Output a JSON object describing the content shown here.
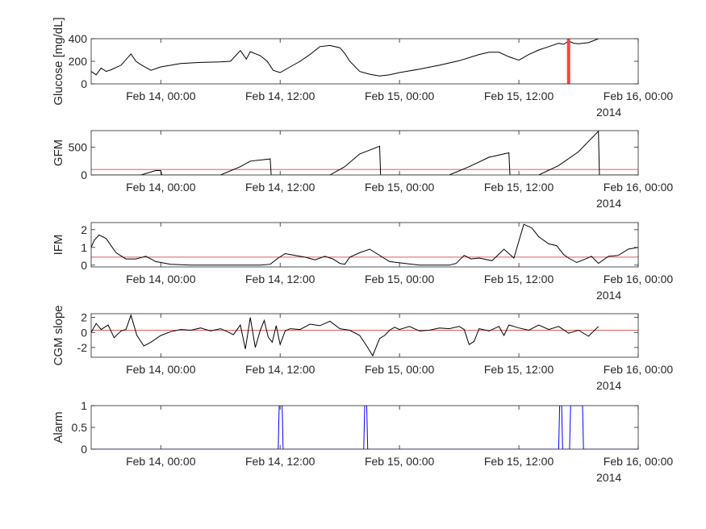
{
  "figure": {
    "background": "#ffffff"
  },
  "x_axis": {
    "ticks": [
      24,
      36,
      48,
      60,
      72
    ],
    "tick_labels": [
      "Feb 14, 00:00",
      "Feb 14, 12:00",
      "Feb 15, 00:00",
      "Feb 15, 12:00",
      "Feb 16, 00:00"
    ],
    "year_label": "2014",
    "xlim_hours_from_feb13_0000": [
      17,
      72
    ]
  },
  "chart_data": [
    {
      "type": "line",
      "ylabel": "Glucose [mg/dL]",
      "ylim": [
        0,
        400
      ],
      "yticks": [
        0,
        200,
        400
      ],
      "ytick_labels": [
        "0",
        "200",
        "400"
      ],
      "line_color": "#000000",
      "x_hours": [
        17,
        17.5,
        18,
        18.5,
        19,
        20,
        21,
        21.5,
        22,
        23,
        24,
        26,
        28,
        30,
        31,
        32,
        32.6,
        33,
        34,
        34.7,
        35.3,
        36,
        37,
        38,
        39,
        40,
        41,
        42,
        42.5,
        43,
        44,
        45,
        46,
        47,
        48,
        50,
        52,
        54,
        56,
        57,
        58,
        59,
        60,
        61,
        62,
        63,
        64,
        64.5,
        65,
        65.5,
        66,
        67,
        68
      ],
      "values": [
        110,
        80,
        140,
        110,
        125,
        165,
        265,
        200,
        170,
        120,
        150,
        180,
        190,
        195,
        200,
        295,
        220,
        285,
        250,
        200,
        120,
        100,
        150,
        200,
        260,
        330,
        340,
        320,
        270,
        200,
        110,
        85,
        70,
        80,
        100,
        130,
        165,
        205,
        260,
        280,
        280,
        240,
        210,
        260,
        300,
        330,
        360,
        350,
        380,
        360,
        355,
        365,
        400
      ],
      "markers": {
        "red_vertical_line_x": 65,
        "color": "#ff4040"
      }
    },
    {
      "type": "line",
      "ylabel": "GFM",
      "ylim": [
        0,
        800
      ],
      "yticks": [
        0,
        500
      ],
      "ytick_labels": [
        "0",
        "500"
      ],
      "line_color": "#000000",
      "threshold": {
        "value": 100,
        "color": "#d62728"
      },
      "x_hours": [
        17,
        22,
        23.5,
        24,
        24.1,
        30,
        32,
        33,
        35,
        35.1,
        41,
        42.5,
        44,
        46,
        46.1,
        53,
        55,
        57,
        59,
        59.1,
        62,
        64,
        66,
        68,
        68.1,
        72
      ],
      "values": [
        0,
        0,
        80,
        80,
        0,
        0,
        150,
        250,
        290,
        0,
        0,
        150,
        380,
        520,
        0,
        0,
        150,
        320,
        400,
        0,
        0,
        170,
        420,
        790,
        0,
        0
      ]
    },
    {
      "type": "line",
      "ylabel": "IFM",
      "ylim": [
        -0.1,
        2.4
      ],
      "yticks": [
        0,
        1,
        2
      ],
      "ytick_labels": [
        "0",
        "1",
        "2"
      ],
      "line_color": "#000000",
      "threshold": {
        "value": 0.45,
        "color": "#d62728"
      },
      "x_hours": [
        17,
        17.3,
        17.8,
        18.5,
        19.5,
        20.5,
        21.5,
        22.5,
        23.5,
        25,
        27,
        29,
        31,
        32,
        33,
        34,
        35,
        35.8,
        36.5,
        37.5,
        38.5,
        39.5,
        40.5,
        41.3,
        42,
        42.5,
        43,
        44,
        45,
        47,
        50,
        52,
        53,
        53.7,
        54.5,
        55.2,
        56,
        57.3,
        58.5,
        59.5,
        60.5,
        61.3,
        62,
        63,
        63.8,
        64.5,
        65,
        65.8,
        66.5,
        67.3,
        68,
        69,
        70,
        71,
        72
      ],
      "values": [
        1.0,
        1.4,
        1.7,
        1.5,
        0.7,
        0.35,
        0.35,
        0.5,
        0.2,
        0.05,
        0,
        0,
        0,
        0,
        0,
        0,
        0.05,
        0.4,
        0.65,
        0.55,
        0.45,
        0.3,
        0.5,
        0.35,
        0.1,
        0.05,
        0.45,
        0.7,
        0.9,
        0.2,
        0,
        0,
        0,
        0.1,
        0.55,
        0.35,
        0.4,
        0.25,
        0.9,
        0.4,
        2.3,
        2.1,
        1.6,
        1.2,
        1.1,
        0.6,
        0.4,
        0.15,
        0.3,
        0.5,
        0.1,
        0.5,
        0.55,
        0.9,
        1.0
      ]
    },
    {
      "type": "line",
      "ylabel": "CGM slope",
      "ylim": [
        -3.3,
        2.5
      ],
      "yticks": [
        -2,
        0,
        2
      ],
      "ytick_labels": [
        "-2",
        "0",
        "2"
      ],
      "line_color": "#000000",
      "threshold": {
        "value": 0.3,
        "color": "#d62728"
      },
      "x_hours": [
        17,
        17.5,
        18,
        18.7,
        19.3,
        20,
        20.5,
        21,
        21.6,
        22.3,
        23,
        24,
        25,
        26,
        27,
        28,
        29,
        30,
        30.7,
        31.3,
        32,
        32.5,
        33,
        33.5,
        34,
        34.4,
        34.8,
        35.2,
        35.6,
        36,
        36.5,
        37,
        38,
        39,
        40,
        41,
        42,
        43,
        44,
        44.7,
        45.3,
        46,
        46.5,
        47,
        47.5,
        48,
        49,
        50,
        51,
        52,
        53,
        54,
        54.5,
        55,
        55.5,
        56,
        57,
        58,
        58.5,
        59,
        60,
        61,
        62,
        63,
        64,
        65,
        66,
        67,
        68
      ],
      "values": [
        0,
        1.2,
        0.4,
        1.0,
        -0.7,
        0.2,
        0.4,
        2.3,
        -0.4,
        -1.8,
        -1.3,
        -0.4,
        0.1,
        0.4,
        0.3,
        0.6,
        0.2,
        0.5,
        0.1,
        -0.3,
        1.0,
        -2.2,
        2.0,
        -2.0,
        0.3,
        1.6,
        -0.6,
        -1.3,
        0.9,
        -1.6,
        0.2,
        0.5,
        0.4,
        1.1,
        0.9,
        1.5,
        0.5,
        0.3,
        -0.4,
        -1.8,
        -3.1,
        -0.8,
        -0.4,
        0.3,
        0.7,
        0.4,
        0.8,
        0.2,
        0.3,
        0.6,
        0.5,
        0.8,
        0.4,
        -1.6,
        -1.2,
        0.5,
        0.2,
        0.8,
        -0.4,
        1.0,
        0.6,
        0.3,
        1.0,
        0.4,
        0.8,
        -0.1,
        0.3,
        -0.5,
        0.8
      ]
    },
    {
      "type": "line",
      "ylabel": "Alarm",
      "ylim": [
        0,
        1
      ],
      "yticks": [
        0,
        0.5,
        1
      ],
      "ytick_labels": [
        "0",
        "0.5",
        "1"
      ],
      "line_color": "#0000ff",
      "x_hours": [
        17,
        35.8,
        35.9,
        36.2,
        36.3,
        44.4,
        44.5,
        44.7,
        44.8,
        64,
        64.1,
        64.3,
        64.4,
        65.1,
        65.2,
        66.4,
        66.5,
        72
      ],
      "values": [
        0,
        0,
        1,
        1,
        0,
        0,
        1,
        1,
        0,
        0,
        1,
        1,
        0,
        0,
        1,
        1,
        0,
        0
      ]
    }
  ]
}
